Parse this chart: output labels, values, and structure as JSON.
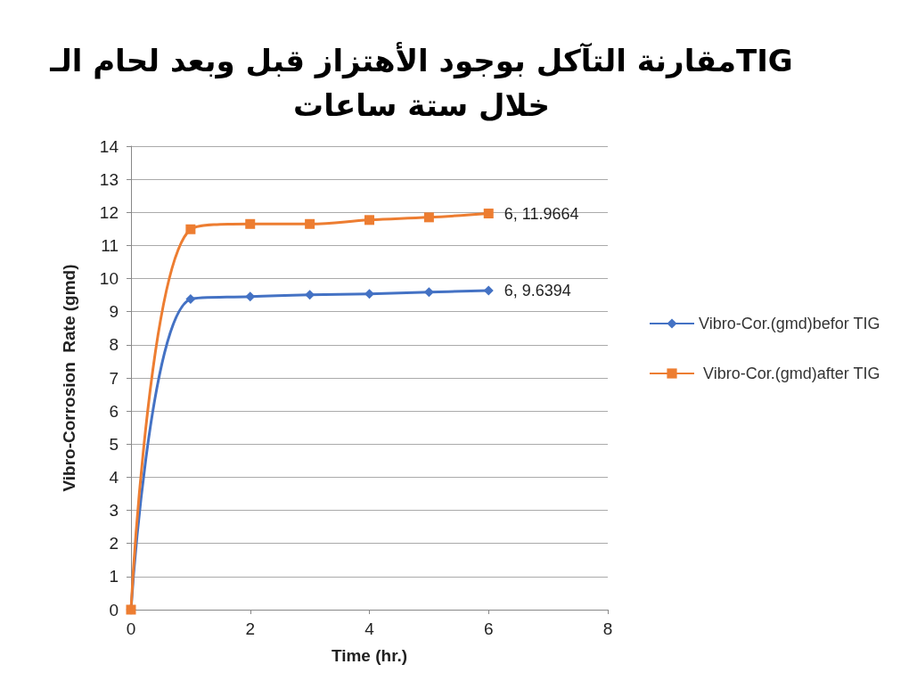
{
  "chart_data": {
    "type": "line",
    "title": "مقارنة التآكل بوجود الأهتزاز قبل وبعد لحام الـTIG\nخلال ستة ساعات",
    "xlabel": "Time (hr.)",
    "ylabel": "Vibro-Corrosion  Rate (gmd)",
    "x": [
      0,
      1,
      2,
      3,
      4,
      5,
      6
    ],
    "series": [
      {
        "name": "Vibro-Cor.(gmd)befor TIG",
        "color": "#4472c4",
        "marker": "diamond",
        "values": [
          0,
          9.38,
          9.46,
          9.51,
          9.54,
          9.59,
          9.6394
        ],
        "value_labels": [
          null,
          null,
          null,
          null,
          null,
          null,
          "6, 9.6394"
        ]
      },
      {
        "name": " Vibro-Cor.(gmd)after TIG",
        "color": "#ed7d31",
        "marker": "square",
        "values": [
          0,
          11.49,
          11.65,
          11.65,
          11.77,
          11.85,
          11.9664
        ],
        "value_labels": [
          null,
          null,
          null,
          null,
          null,
          null,
          "6, 11.9664"
        ]
      }
    ],
    "xlim": [
      0,
      8
    ],
    "xticks": [
      0,
      2,
      4,
      6,
      8
    ],
    "ylim": [
      0,
      14
    ],
    "yticks": [
      0,
      1,
      2,
      3,
      4,
      5,
      6,
      7,
      8,
      9,
      10,
      11,
      12,
      13,
      14
    ],
    "grid": "y",
    "legend": "right"
  }
}
